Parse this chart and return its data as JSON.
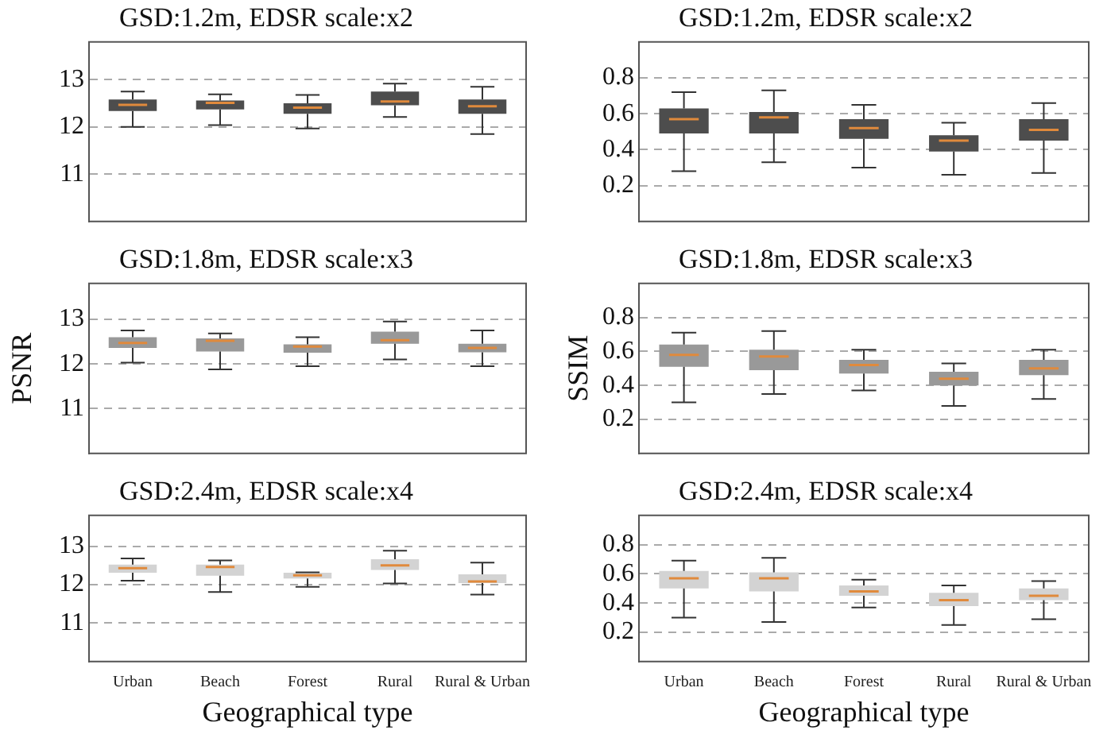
{
  "chart_data": [
    {
      "type": "box",
      "title": "GSD:1.2m, EDSR scale:x2",
      "categories": [
        null,
        null,
        null,
        null,
        null
      ],
      "color": "#4d4d4d",
      "ylim": [
        10,
        13.8
      ],
      "yticks": [
        11,
        12,
        13
      ],
      "grid": "y",
      "tick_labels": "y",
      "boxes": [
        {
          "low": 12.0,
          "q1": 12.34,
          "median": 12.47,
          "q3": 12.58,
          "high": 12.75
        },
        {
          "low": 12.04,
          "q1": 12.37,
          "median": 12.51,
          "q3": 12.56,
          "high": 12.69
        },
        {
          "low": 11.97,
          "q1": 12.28,
          "median": 12.41,
          "q3": 12.5,
          "high": 12.68
        },
        {
          "low": 12.21,
          "q1": 12.46,
          "median": 12.54,
          "q3": 12.75,
          "high": 12.92
        },
        {
          "low": 11.85,
          "q1": 12.28,
          "median": 12.44,
          "q3": 12.58,
          "high": 12.85
        }
      ]
    },
    {
      "type": "box",
      "title": "GSD:1.2m, EDSR scale:x2",
      "categories": [
        null,
        null,
        null,
        null,
        null
      ],
      "color": "#4d4d4d",
      "ylim": [
        0,
        1.0
      ],
      "yticks": [
        0.2,
        0.4,
        0.6,
        0.8
      ],
      "grid": "y",
      "tick_labels": "y",
      "boxes": [
        {
          "low": 0.28,
          "q1": 0.49,
          "median": 0.57,
          "q3": 0.63,
          "high": 0.72
        },
        {
          "low": 0.33,
          "q1": 0.49,
          "median": 0.58,
          "q3": 0.61,
          "high": 0.73
        },
        {
          "low": 0.3,
          "q1": 0.46,
          "median": 0.52,
          "q3": 0.57,
          "high": 0.65
        },
        {
          "low": 0.26,
          "q1": 0.39,
          "median": 0.45,
          "q3": 0.48,
          "high": 0.55
        },
        {
          "low": 0.27,
          "q1": 0.45,
          "median": 0.51,
          "q3": 0.57,
          "high": 0.66
        }
      ]
    },
    {
      "type": "box",
      "title": "GSD:1.8m, EDSR scale:x3",
      "ylabel": "PSNR",
      "categories": [
        null,
        null,
        null,
        null,
        null
      ],
      "color": "#999999",
      "ylim": [
        10,
        13.8
      ],
      "yticks": [
        11,
        12,
        13
      ],
      "grid": "y",
      "tick_labels": "y",
      "boxes": [
        {
          "low": 12.03,
          "q1": 12.36,
          "median": 12.47,
          "q3": 12.6,
          "high": 12.75
        },
        {
          "low": 11.88,
          "q1": 12.28,
          "median": 12.52,
          "q3": 12.57,
          "high": 12.68
        },
        {
          "low": 11.95,
          "q1": 12.25,
          "median": 12.39,
          "q3": 12.44,
          "high": 12.6
        },
        {
          "low": 12.1,
          "q1": 12.45,
          "median": 12.53,
          "q3": 12.72,
          "high": 12.95
        },
        {
          "low": 11.95,
          "q1": 12.26,
          "median": 12.36,
          "q3": 12.45,
          "high": 12.75
        }
      ]
    },
    {
      "type": "box",
      "title": "GSD:1.8m, EDSR scale:x3",
      "ylabel": "SSIM",
      "categories": [
        null,
        null,
        null,
        null,
        null
      ],
      "color": "#999999",
      "ylim": [
        0,
        1.0
      ],
      "yticks": [
        0.2,
        0.4,
        0.6,
        0.8
      ],
      "grid": "y",
      "tick_labels": "y",
      "boxes": [
        {
          "low": 0.3,
          "q1": 0.51,
          "median": 0.58,
          "q3": 0.64,
          "high": 0.71
        },
        {
          "low": 0.35,
          "q1": 0.49,
          "median": 0.57,
          "q3": 0.61,
          "high": 0.72
        },
        {
          "low": 0.37,
          "q1": 0.47,
          "median": 0.52,
          "q3": 0.55,
          "high": 0.61
        },
        {
          "low": 0.28,
          "q1": 0.4,
          "median": 0.44,
          "q3": 0.48,
          "high": 0.53
        },
        {
          "low": 0.32,
          "q1": 0.46,
          "median": 0.5,
          "q3": 0.55,
          "high": 0.61
        }
      ]
    },
    {
      "type": "box",
      "title": "GSD:2.4m, EDSR scale:x4",
      "xlabel": "Geographical type",
      "categories": [
        "Urban",
        "Beach",
        "Forest",
        "Rural",
        "Rural & Urban"
      ],
      "color": "#d3d3d3",
      "ylim": [
        10,
        13.8
      ],
      "yticks": [
        11,
        12,
        13
      ],
      "grid": "y",
      "boxes": [
        {
          "low": 12.1,
          "q1": 12.31,
          "median": 12.43,
          "q3": 12.52,
          "high": 12.68
        },
        {
          "low": 11.81,
          "q1": 12.23,
          "median": 12.46,
          "q3": 12.52,
          "high": 12.63
        },
        {
          "low": 11.94,
          "q1": 12.16,
          "median": 12.24,
          "q3": 12.31,
          "high": 12.32
        },
        {
          "low": 12.03,
          "q1": 12.38,
          "median": 12.5,
          "q3": 12.66,
          "high": 12.88
        },
        {
          "low": 11.74,
          "q1": 12.04,
          "median": 12.08,
          "q3": 12.27,
          "high": 12.57
        }
      ]
    },
    {
      "type": "box",
      "title": "GSD:2.4m, EDSR scale:x4",
      "xlabel": "Geographical type",
      "categories": [
        "Urban",
        "Beach",
        "Forest",
        "Rural",
        "Rural & Urban"
      ],
      "color": "#d3d3d3",
      "ylim": [
        0,
        1.0
      ],
      "yticks": [
        0.2,
        0.4,
        0.6,
        0.8
      ],
      "grid": "y",
      "boxes": [
        {
          "low": 0.3,
          "q1": 0.5,
          "median": 0.57,
          "q3": 0.62,
          "high": 0.69
        },
        {
          "low": 0.27,
          "q1": 0.48,
          "median": 0.57,
          "q3": 0.61,
          "high": 0.71
        },
        {
          "low": 0.37,
          "q1": 0.45,
          "median": 0.48,
          "q3": 0.52,
          "high": 0.56
        },
        {
          "low": 0.25,
          "q1": 0.38,
          "median": 0.42,
          "q3": 0.47,
          "high": 0.52
        },
        {
          "low": 0.29,
          "q1": 0.42,
          "median": 0.45,
          "q3": 0.5,
          "high": 0.55
        }
      ]
    }
  ]
}
